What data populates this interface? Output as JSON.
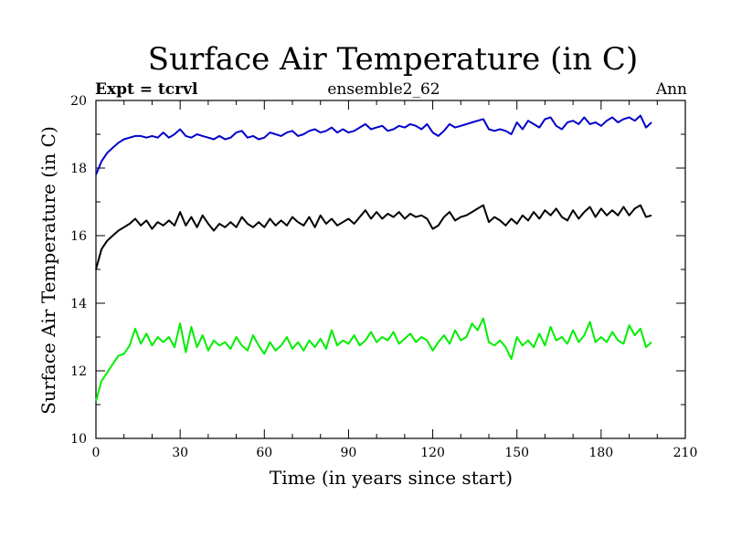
{
  "chart_data": {
    "type": "line",
    "title": "Surface Air Temperature (in C)",
    "expt_label": "Expt = tcrvl",
    "subtitle": "ensemble2_62",
    "period_label": "Ann",
    "xlabel": "Time (in years since start)",
    "ylabel": "Surface Air Temperature (in C)",
    "xlim": [
      0,
      210
    ],
    "ylim": [
      10,
      20
    ],
    "x_ticks": [
      0,
      30,
      60,
      90,
      120,
      150,
      180,
      210
    ],
    "y_ticks": [
      10,
      12,
      14,
      16,
      18,
      20
    ],
    "x_minor_step": 10,
    "y_minor_step": 1,
    "series": [
      {
        "name": "upper (blue)",
        "color": "#0000cc",
        "x": [
          0,
          2,
          4,
          6,
          8,
          10,
          12,
          14,
          16,
          18,
          20,
          22,
          24,
          26,
          28,
          30,
          32,
          34,
          36,
          38,
          40,
          42,
          44,
          46,
          48,
          50,
          52,
          54,
          56,
          58,
          60,
          62,
          64,
          66,
          68,
          70,
          72,
          74,
          76,
          78,
          80,
          82,
          84,
          86,
          88,
          90,
          92,
          94,
          96,
          98,
          100,
          102,
          104,
          106,
          108,
          110,
          112,
          114,
          116,
          118,
          120,
          122,
          124,
          126,
          128,
          130,
          132,
          134,
          136,
          138,
          140,
          142,
          144,
          146,
          148,
          150,
          152,
          154,
          156,
          158,
          160,
          162,
          164,
          166,
          168,
          170,
          172,
          174,
          176,
          178,
          180,
          182,
          184,
          186,
          188,
          190,
          192,
          194,
          196,
          198
        ],
        "values": [
          17.8,
          18.2,
          18.45,
          18.6,
          18.75,
          18.85,
          18.9,
          18.95,
          18.95,
          18.9,
          18.95,
          18.9,
          19.05,
          18.9,
          19.0,
          19.15,
          18.95,
          18.9,
          19.0,
          18.95,
          18.9,
          18.85,
          18.95,
          18.85,
          18.9,
          19.05,
          19.1,
          18.9,
          18.95,
          18.85,
          18.9,
          19.05,
          19.0,
          18.95,
          19.05,
          19.1,
          18.95,
          19.0,
          19.1,
          19.15,
          19.05,
          19.1,
          19.2,
          19.05,
          19.15,
          19.05,
          19.1,
          19.2,
          19.3,
          19.15,
          19.2,
          19.25,
          19.1,
          19.15,
          19.25,
          19.2,
          19.3,
          19.25,
          19.15,
          19.3,
          19.05,
          18.95,
          19.1,
          19.3,
          19.2,
          19.25,
          19.3,
          19.35,
          19.4,
          19.45,
          19.15,
          19.1,
          19.15,
          19.1,
          19.0,
          19.35,
          19.15,
          19.4,
          19.3,
          19.2,
          19.45,
          19.5,
          19.25,
          19.15,
          19.35,
          19.4,
          19.3,
          19.5,
          19.3,
          19.35,
          19.25,
          19.4,
          19.5,
          19.35,
          19.45,
          19.5,
          19.4,
          19.55,
          19.2,
          19.35
        ]
      },
      {
        "name": "middle (black)",
        "color": "#000000",
        "x": [
          0,
          2,
          4,
          6,
          8,
          10,
          12,
          14,
          16,
          18,
          20,
          22,
          24,
          26,
          28,
          30,
          32,
          34,
          36,
          38,
          40,
          42,
          44,
          46,
          48,
          50,
          52,
          54,
          56,
          58,
          60,
          62,
          64,
          66,
          68,
          70,
          72,
          74,
          76,
          78,
          80,
          82,
          84,
          86,
          88,
          90,
          92,
          94,
          96,
          98,
          100,
          102,
          104,
          106,
          108,
          110,
          112,
          114,
          116,
          118,
          120,
          122,
          124,
          126,
          128,
          130,
          132,
          134,
          136,
          138,
          140,
          142,
          144,
          146,
          148,
          150,
          152,
          154,
          156,
          158,
          160,
          162,
          164,
          166,
          168,
          170,
          172,
          174,
          176,
          178,
          180,
          182,
          184,
          186,
          188,
          190,
          192,
          194,
          196,
          198
        ],
        "values": [
          15.0,
          15.6,
          15.85,
          16.0,
          16.15,
          16.25,
          16.35,
          16.5,
          16.3,
          16.45,
          16.2,
          16.4,
          16.3,
          16.45,
          16.3,
          16.7,
          16.3,
          16.55,
          16.25,
          16.6,
          16.35,
          16.15,
          16.35,
          16.25,
          16.4,
          16.25,
          16.55,
          16.35,
          16.25,
          16.4,
          16.25,
          16.5,
          16.3,
          16.45,
          16.3,
          16.55,
          16.4,
          16.3,
          16.55,
          16.25,
          16.6,
          16.35,
          16.5,
          16.3,
          16.4,
          16.5,
          16.35,
          16.55,
          16.75,
          16.5,
          16.7,
          16.5,
          16.65,
          16.55,
          16.7,
          16.5,
          16.65,
          16.55,
          16.6,
          16.5,
          16.2,
          16.3,
          16.55,
          16.7,
          16.45,
          16.55,
          16.6,
          16.7,
          16.8,
          16.9,
          16.4,
          16.55,
          16.45,
          16.3,
          16.5,
          16.35,
          16.6,
          16.45,
          16.7,
          16.5,
          16.75,
          16.6,
          16.8,
          16.55,
          16.45,
          16.75,
          16.5,
          16.7,
          16.85,
          16.55,
          16.8,
          16.6,
          16.75,
          16.6,
          16.85,
          16.6,
          16.8,
          16.9,
          16.55,
          16.6
        ]
      },
      {
        "name": "lower (green)",
        "color": "#00ee00",
        "x": [
          0,
          2,
          4,
          6,
          8,
          10,
          12,
          14,
          16,
          18,
          20,
          22,
          24,
          26,
          28,
          30,
          32,
          34,
          36,
          38,
          40,
          42,
          44,
          46,
          48,
          50,
          52,
          54,
          56,
          58,
          60,
          62,
          64,
          66,
          68,
          70,
          72,
          74,
          76,
          78,
          80,
          82,
          84,
          86,
          88,
          90,
          92,
          94,
          96,
          98,
          100,
          102,
          104,
          106,
          108,
          110,
          112,
          114,
          116,
          118,
          120,
          122,
          124,
          126,
          128,
          130,
          132,
          134,
          136,
          138,
          140,
          142,
          144,
          146,
          148,
          150,
          152,
          154,
          156,
          158,
          160,
          162,
          164,
          166,
          168,
          170,
          172,
          174,
          176,
          178,
          180,
          182,
          184,
          186,
          188,
          190,
          192,
          194,
          196,
          198
        ],
        "values": [
          11.1,
          11.7,
          11.95,
          12.2,
          12.45,
          12.5,
          12.75,
          13.25,
          12.8,
          13.1,
          12.75,
          13.0,
          12.85,
          13.0,
          12.7,
          13.4,
          12.55,
          13.3,
          12.7,
          13.05,
          12.6,
          12.9,
          12.75,
          12.85,
          12.65,
          13.0,
          12.75,
          12.6,
          13.05,
          12.75,
          12.5,
          12.85,
          12.6,
          12.75,
          13.0,
          12.65,
          12.85,
          12.6,
          12.9,
          12.7,
          12.95,
          12.65,
          13.2,
          12.75,
          12.9,
          12.8,
          13.05,
          12.75,
          12.9,
          13.15,
          12.85,
          13.0,
          12.9,
          13.15,
          12.8,
          12.95,
          13.1,
          12.85,
          13.0,
          12.9,
          12.6,
          12.85,
          13.05,
          12.8,
          13.2,
          12.9,
          13.0,
          13.4,
          13.2,
          13.55,
          12.85,
          12.75,
          12.9,
          12.7,
          12.35,
          13.0,
          12.75,
          12.9,
          12.7,
          13.1,
          12.75,
          13.3,
          12.9,
          13.0,
          12.8,
          13.2,
          12.85,
          13.05,
          13.45,
          12.85,
          13.0,
          12.85,
          13.15,
          12.9,
          12.8,
          13.35,
          13.05,
          13.25,
          12.7,
          12.85
        ]
      }
    ]
  }
}
